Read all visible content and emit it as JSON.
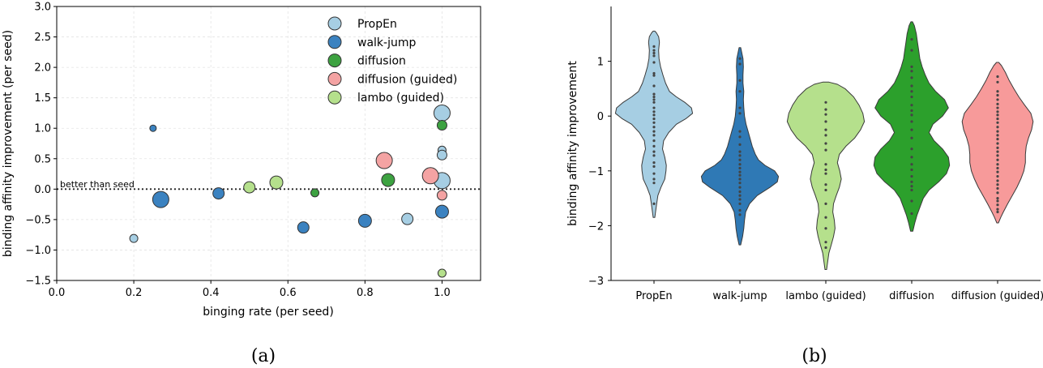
{
  "chart_data": [
    {
      "type": "scatter",
      "xlabel": "binging rate (per seed)",
      "ylabel": "binding affinity improvement (per seed)",
      "xlim": [
        0.0,
        1.1
      ],
      "ylim": [
        -1.5,
        3.0
      ],
      "xticks": [
        "0.0",
        "0.2",
        "0.4",
        "0.6",
        "0.8",
        "1.0"
      ],
      "yticks": [
        "−1.5",
        "−1.0",
        "−0.5",
        "0.0",
        "0.5",
        "1.0",
        "1.5",
        "2.0",
        "2.5",
        "3.0"
      ],
      "grid": true,
      "legend_position": "top-right",
      "reference_line": {
        "y": 0.0,
        "label": "better than seed"
      },
      "caption": "(a)",
      "series": [
        {
          "name": "PropEn",
          "color": "#a6cee3",
          "points": [
            {
              "x": 0.2,
              "y": -0.81,
              "size": 5
            },
            {
              "x": 0.91,
              "y": -0.49,
              "size": 7
            },
            {
              "x": 1.0,
              "y": 1.25,
              "size": 10
            },
            {
              "x": 1.0,
              "y": 0.64,
              "size": 5
            },
            {
              "x": 1.0,
              "y": 0.56,
              "size": 6
            },
            {
              "x": 1.0,
              "y": 0.14,
              "size": 10
            }
          ]
        },
        {
          "name": "walk-jump",
          "color": "#3b82c0",
          "points": [
            {
              "x": 0.25,
              "y": 1.0,
              "size": 4
            },
            {
              "x": 0.27,
              "y": -0.17,
              "size": 10
            },
            {
              "x": 0.42,
              "y": -0.07,
              "size": 7
            },
            {
              "x": 0.64,
              "y": -0.63,
              "size": 7
            },
            {
              "x": 0.8,
              "y": -0.52,
              "size": 8
            },
            {
              "x": 1.0,
              "y": -0.37,
              "size": 8
            }
          ]
        },
        {
          "name": "diffusion",
          "color": "#3da241",
          "points": [
            {
              "x": 0.67,
              "y": -0.06,
              "size": 5
            },
            {
              "x": 0.86,
              "y": 0.15,
              "size": 8
            },
            {
              "x": 1.0,
              "y": 1.05,
              "size": 6
            }
          ]
        },
        {
          "name": "diffusion (guided)",
          "color": "#f4a3a3",
          "points": [
            {
              "x": 0.85,
              "y": 0.47,
              "size": 10
            },
            {
              "x": 0.97,
              "y": 0.22,
              "size": 10
            },
            {
              "x": 1.0,
              "y": -0.1,
              "size": 6
            }
          ]
        },
        {
          "name": "lambo (guided)",
          "color": "#b5e08c",
          "points": [
            {
              "x": 0.5,
              "y": 0.03,
              "size": 7
            },
            {
              "x": 0.57,
              "y": 0.11,
              "size": 8
            },
            {
              "x": 1.0,
              "y": -1.38,
              "size": 5
            }
          ]
        }
      ]
    },
    {
      "type": "violin",
      "xlabel": "",
      "ylabel": "binding affinity improvement",
      "ylim": [
        -3.0,
        2.0
      ],
      "yticks": [
        "−3",
        "−2",
        "−1",
        "0",
        "1"
      ],
      "caption": "(b)",
      "categories": [
        "PropEn",
        "walk-jump",
        "lambo (guided)",
        "diffusion",
        "diffusion (guided)"
      ],
      "violins": [
        {
          "name": "PropEn",
          "color": "#a6cee3",
          "width": 0.62,
          "profile": [
            [
              -1.85,
              0.02
            ],
            [
              -1.75,
              0.04
            ],
            [
              -1.6,
              0.07
            ],
            [
              -1.45,
              0.1
            ],
            [
              -1.3,
              0.18
            ],
            [
              -1.15,
              0.28
            ],
            [
              -1.0,
              0.31
            ],
            [
              -0.9,
              0.32
            ],
            [
              -0.75,
              0.28
            ],
            [
              -0.6,
              0.22
            ],
            [
              -0.45,
              0.25
            ],
            [
              -0.3,
              0.38
            ],
            [
              -0.15,
              0.58
            ],
            [
              -0.05,
              0.82
            ],
            [
              0.05,
              1.0
            ],
            [
              0.15,
              0.97
            ],
            [
              0.25,
              0.8
            ],
            [
              0.35,
              0.58
            ],
            [
              0.45,
              0.4
            ],
            [
              0.6,
              0.3
            ],
            [
              0.75,
              0.23
            ],
            [
              0.9,
              0.17
            ],
            [
              1.05,
              0.13
            ],
            [
              1.2,
              0.12
            ],
            [
              1.35,
              0.14
            ],
            [
              1.45,
              0.12
            ],
            [
              1.52,
              0.06
            ],
            [
              1.55,
              0.02
            ]
          ],
          "points": [
            1.27,
            1.2,
            1.15,
            1.1,
            0.98,
            0.78,
            0.74,
            0.55,
            0.4,
            0.35,
            0.3,
            0.25,
            0.15,
            0.08,
            0.02,
            -0.05,
            -0.12,
            -0.2,
            -0.28,
            -0.35,
            -0.45,
            -0.55,
            -0.65,
            -0.72,
            -0.85,
            -0.92,
            -1.05,
            -1.15,
            -1.22,
            -1.6
          ]
        },
        {
          "name": "walk-jump",
          "color": "#2f79b5",
          "width": 0.62,
          "profile": [
            [
              -2.35,
              0.02
            ],
            [
              -2.2,
              0.07
            ],
            [
              -2.05,
              0.1
            ],
            [
              -1.9,
              0.12
            ],
            [
              -1.75,
              0.15
            ],
            [
              -1.6,
              0.25
            ],
            [
              -1.45,
              0.45
            ],
            [
              -1.3,
              0.78
            ],
            [
              -1.2,
              0.97
            ],
            [
              -1.1,
              1.0
            ],
            [
              -1.0,
              0.9
            ],
            [
              -0.9,
              0.65
            ],
            [
              -0.8,
              0.48
            ],
            [
              -0.7,
              0.4
            ],
            [
              -0.55,
              0.32
            ],
            [
              -0.4,
              0.26
            ],
            [
              -0.3,
              0.22
            ],
            [
              -0.15,
              0.16
            ],
            [
              0.0,
              0.12
            ],
            [
              0.15,
              0.1
            ],
            [
              0.3,
              0.09
            ],
            [
              0.45,
              0.1
            ],
            [
              0.6,
              0.08
            ],
            [
              0.75,
              0.08
            ],
            [
              0.9,
              0.09
            ],
            [
              1.05,
              0.08
            ],
            [
              1.15,
              0.05
            ],
            [
              1.25,
              0.02
            ]
          ],
          "points": [
            1.05,
            0.95,
            0.65,
            0.45,
            0.15,
            0.05,
            -0.28,
            -0.38,
            -0.52,
            -0.65,
            -0.72,
            -0.8,
            -0.88,
            -0.95,
            -1.02,
            -1.08,
            -1.15,
            -1.22,
            -1.3,
            -1.38,
            -1.45,
            -1.52,
            -1.6,
            -1.72,
            -1.8
          ]
        },
        {
          "name": "lambo (guided)",
          "color": "#b5e08c",
          "width": 0.62,
          "profile": [
            [
              -2.8,
              0.02
            ],
            [
              -2.65,
              0.05
            ],
            [
              -2.5,
              0.08
            ],
            [
              -2.35,
              0.14
            ],
            [
              -2.2,
              0.2
            ],
            [
              -2.05,
              0.24
            ],
            [
              -1.9,
              0.22
            ],
            [
              -1.75,
              0.18
            ],
            [
              -1.6,
              0.2
            ],
            [
              -1.45,
              0.27
            ],
            [
              -1.3,
              0.35
            ],
            [
              -1.15,
              0.4
            ],
            [
              -1.0,
              0.36
            ],
            [
              -0.85,
              0.3
            ],
            [
              -0.7,
              0.35
            ],
            [
              -0.55,
              0.52
            ],
            [
              -0.4,
              0.75
            ],
            [
              -0.25,
              0.9
            ],
            [
              -0.1,
              1.0
            ],
            [
              0.05,
              0.96
            ],
            [
              0.2,
              0.86
            ],
            [
              0.35,
              0.72
            ],
            [
              0.5,
              0.5
            ],
            [
              0.58,
              0.3
            ],
            [
              0.62,
              0.08
            ]
          ],
          "points": [
            0.25,
            0.12,
            0.03,
            -0.1,
            -0.25,
            -0.35,
            -0.5,
            -0.62,
            -0.88,
            -0.98,
            -1.05,
            -1.25,
            -1.35,
            -1.6,
            -1.85,
            -2.05,
            -2.3,
            -2.4
          ]
        },
        {
          "name": "diffusion",
          "color": "#2ca02c",
          "width": 0.62,
          "profile": [
            [
              -2.1,
              0.03
            ],
            [
              -1.95,
              0.08
            ],
            [
              -1.8,
              0.14
            ],
            [
              -1.65,
              0.22
            ],
            [
              -1.5,
              0.3
            ],
            [
              -1.35,
              0.45
            ],
            [
              -1.2,
              0.7
            ],
            [
              -1.05,
              0.9
            ],
            [
              -0.9,
              0.98
            ],
            [
              -0.75,
              0.95
            ],
            [
              -0.6,
              0.8
            ],
            [
              -0.45,
              0.58
            ],
            [
              -0.3,
              0.45
            ],
            [
              -0.15,
              0.55
            ],
            [
              0.0,
              0.8
            ],
            [
              0.15,
              0.95
            ],
            [
              0.3,
              0.85
            ],
            [
              0.45,
              0.62
            ],
            [
              0.6,
              0.45
            ],
            [
              0.75,
              0.35
            ],
            [
              0.9,
              0.27
            ],
            [
              1.05,
              0.21
            ],
            [
              1.2,
              0.18
            ],
            [
              1.35,
              0.15
            ],
            [
              1.5,
              0.12
            ],
            [
              1.65,
              0.07
            ],
            [
              1.72,
              0.02
            ]
          ],
          "points": [
            1.4,
            1.2,
            0.9,
            0.82,
            0.7,
            0.55,
            0.45,
            0.35,
            0.2,
            0.1,
            0.02,
            -0.1,
            -0.25,
            -0.4,
            -0.6,
            -0.75,
            -0.88,
            -0.98,
            -1.1,
            -1.2,
            -1.28,
            -1.35,
            -1.55,
            -1.78
          ]
        },
        {
          "name": "diffusion (guided)",
          "color": "#f79a9a",
          "width": 0.62,
          "profile": [
            [
              -1.95,
              0.02
            ],
            [
              -1.85,
              0.08
            ],
            [
              -1.75,
              0.15
            ],
            [
              -1.6,
              0.26
            ],
            [
              -1.45,
              0.38
            ],
            [
              -1.3,
              0.5
            ],
            [
              -1.15,
              0.6
            ],
            [
              -1.0,
              0.68
            ],
            [
              -0.85,
              0.72
            ],
            [
              -0.7,
              0.72
            ],
            [
              -0.55,
              0.74
            ],
            [
              -0.4,
              0.8
            ],
            [
              -0.25,
              0.88
            ],
            [
              -0.1,
              0.92
            ],
            [
              0.05,
              0.86
            ],
            [
              0.2,
              0.7
            ],
            [
              0.35,
              0.55
            ],
            [
              0.5,
              0.42
            ],
            [
              0.65,
              0.3
            ],
            [
              0.8,
              0.2
            ],
            [
              0.92,
              0.1
            ],
            [
              0.98,
              0.03
            ]
          ],
          "points": [
            0.72,
            0.62,
            0.45,
            0.38,
            0.3,
            0.22,
            0.15,
            0.08,
            0.02,
            -0.05,
            -0.12,
            -0.2,
            -0.28,
            -0.35,
            -0.42,
            -0.5,
            -0.58,
            -0.65,
            -0.72,
            -0.8,
            -0.88,
            -0.95,
            -1.02,
            -1.1,
            -1.18,
            -1.25,
            -1.32,
            -1.4,
            -1.5,
            -1.55,
            -1.62,
            -1.7,
            -1.75
          ]
        }
      ]
    }
  ]
}
